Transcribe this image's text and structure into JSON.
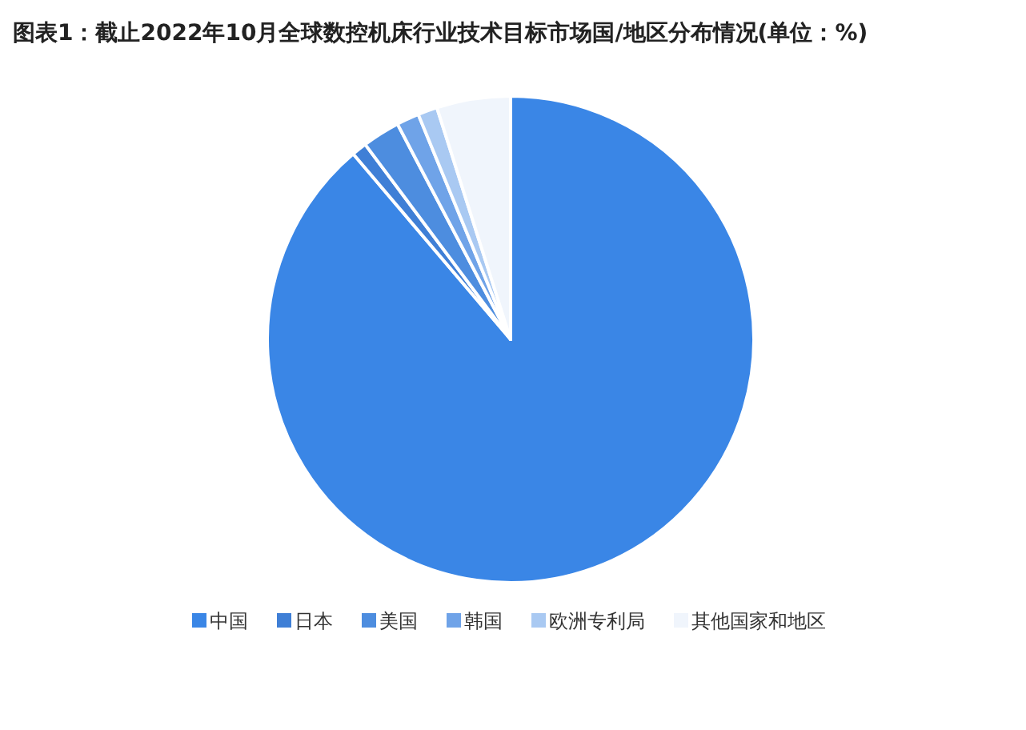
{
  "chart_data": {
    "type": "pie",
    "title": "图表1：截止2022年10月全球数控机床行业技术目标市场国/地区分布情况(单位：%)",
    "categories": [
      "中国",
      "日本",
      "美国",
      "韩国",
      "欧洲专利局",
      "其他国家和地区"
    ],
    "values": [
      88.8,
      1,
      2.5,
      1.5,
      1.3,
      4.9
    ],
    "colors": [
      "#3a86e6",
      "#3f7fd6",
      "#4d8ddf",
      "#6fa3e8",
      "#a9c9f2",
      "#f0f5fc"
    ],
    "legend": "bottom"
  }
}
